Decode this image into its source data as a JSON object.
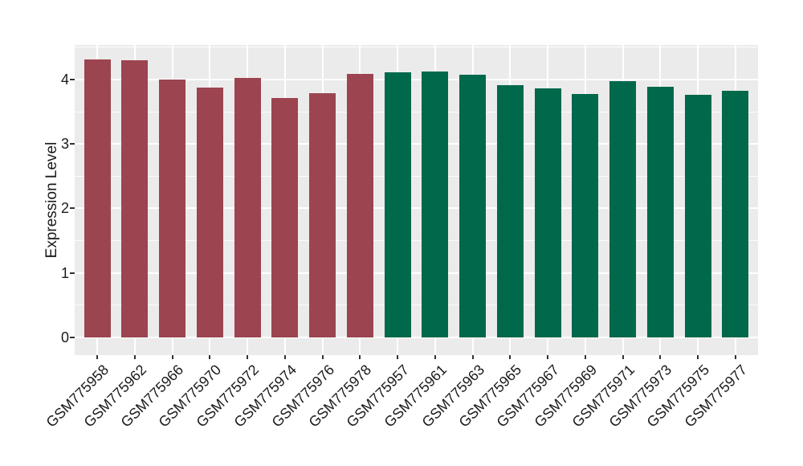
{
  "chart_data": {
    "type": "bar",
    "title": "",
    "xlabel": "",
    "ylabel": "Expression Level",
    "categories": [
      "GSM775958",
      "GSM775962",
      "GSM775966",
      "GSM775970",
      "GSM775972",
      "GSM775974",
      "GSM775976",
      "GSM775978",
      "GSM775957",
      "GSM775961",
      "GSM775963",
      "GSM775965",
      "GSM775967",
      "GSM775969",
      "GSM775971",
      "GSM775973",
      "GSM775975",
      "GSM775977"
    ],
    "values": [
      4.31,
      4.3,
      4.0,
      3.88,
      4.02,
      3.71,
      3.79,
      4.09,
      4.11,
      4.12,
      4.07,
      3.91,
      3.86,
      3.78,
      3.97,
      3.89,
      3.76,
      3.82
    ],
    "bar_groups": [
      0,
      0,
      0,
      0,
      0,
      0,
      0,
      0,
      1,
      1,
      1,
      1,
      1,
      1,
      1,
      1,
      1,
      1
    ],
    "group_colors": [
      "#9C4450",
      "#00684B"
    ],
    "y_ticks": [
      0,
      1,
      2,
      3,
      4
    ],
    "y_tick_labels": [
      "0",
      "1",
      "2",
      "3",
      "4"
    ],
    "y_minor_ticks": [
      0.5,
      1.5,
      2.5,
      3.5,
      4.5
    ],
    "ylim": [
      -0.274,
      4.535
    ],
    "x_tick_angle_deg": 45,
    "legend": "none",
    "grid": "on",
    "panel_background": "#EBEBEB",
    "gridline_color": "#FFFFFF",
    "axis_text_color": "#1A1A1A",
    "tick_mark_color": "#333333"
  }
}
